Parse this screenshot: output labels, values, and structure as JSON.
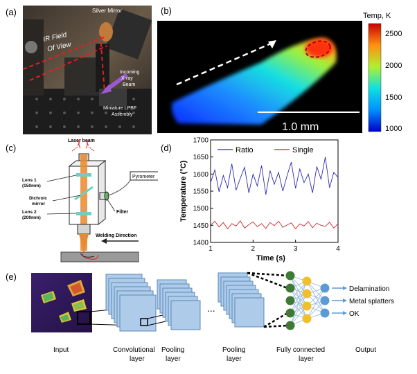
{
  "panels": {
    "a": {
      "label": "(a)",
      "annotations": {
        "silver_mirror": "Silver Mirror",
        "ir_field_1": "IR Field",
        "ir_field_2": "Of View",
        "incoming_1": "Incoming",
        "incoming_2": "X-ray",
        "incoming_3": "Beam",
        "lpbf_1": "Miniature LPBF",
        "lpbf_2": "Assembly"
      }
    },
    "b": {
      "label": "(b)",
      "colorbar_title": "Temp, K",
      "colorbar_ticks": [
        "2500",
        "2000",
        "1500",
        "1000"
      ],
      "scale_bar": "1.0 mm"
    },
    "c": {
      "label": "(c)",
      "laser_beam": "Laser beam",
      "pyrometer": "Pyrometer",
      "lens1_1": "Lens 1",
      "lens1_2": "(150mm)",
      "dichroic_1": "Dichroic",
      "dichroic_2": "mirror",
      "filter": "Filter",
      "lens2_1": "Lens 2",
      "lens2_2": "(200mm)",
      "welding_direction": "Welding Direction"
    },
    "d": {
      "label": "(d)"
    },
    "e": {
      "label": "(e)",
      "captions": {
        "input": "Input",
        "conv_1": "Convolutional",
        "conv_2": "layer",
        "pool1_1": "Pooling",
        "pool1_2": "layer",
        "pool2_1": "Pooling",
        "pool2_2": "layer",
        "fc_1": "Fully connected",
        "fc_2": "layer",
        "output": "Output"
      },
      "ellipsis": "...",
      "outputs": [
        "Delamination",
        "Metal splatters",
        "OK"
      ],
      "colors": {
        "layer": "#aecbea",
        "green": "#3e7a36",
        "yellow": "#f0c02a",
        "blue": "#5b9bd5"
      }
    }
  },
  "chart_data": {
    "type": "line",
    "xlabel": "Time (s)",
    "ylabel": "Temperature (°C)",
    "xlim": [
      1,
      4
    ],
    "ylim": [
      1400,
      1700
    ],
    "xticks": [
      "1",
      "2",
      "3",
      "4"
    ],
    "yticks": [
      "1400",
      "1450",
      "1500",
      "1550",
      "1600",
      "1650",
      "1700"
    ],
    "legend_position": "top",
    "series": [
      {
        "name": "Ratio",
        "color": "#2b2bb0",
        "x": [
          1.0,
          1.1,
          1.2,
          1.3,
          1.4,
          1.5,
          1.6,
          1.7,
          1.8,
          1.9,
          2.0,
          2.1,
          2.2,
          2.3,
          2.4,
          2.5,
          2.6,
          2.7,
          2.8,
          2.9,
          3.0,
          3.1,
          3.2,
          3.3,
          3.4,
          3.5,
          3.6,
          3.7,
          3.8,
          3.9,
          4.0
        ],
        "values": [
          1575,
          1612,
          1548,
          1596,
          1560,
          1630,
          1553,
          1588,
          1620,
          1545,
          1600,
          1565,
          1625,
          1540,
          1610,
          1570,
          1605,
          1550,
          1595,
          1635,
          1558,
          1615,
          1575,
          1600,
          1545,
          1622,
          1585,
          1650,
          1560,
          1605,
          1590
        ]
      },
      {
        "name": "Single",
        "color": "#c0282d",
        "x": [
          1.0,
          1.1,
          1.2,
          1.3,
          1.4,
          1.5,
          1.6,
          1.7,
          1.8,
          1.9,
          2.0,
          2.1,
          2.2,
          2.3,
          2.4,
          2.5,
          2.6,
          2.7,
          2.8,
          2.9,
          3.0,
          3.1,
          3.2,
          3.3,
          3.4,
          3.5,
          3.6,
          3.7,
          3.8,
          3.9,
          4.0
        ],
        "values": [
          1450,
          1462,
          1445,
          1458,
          1440,
          1455,
          1448,
          1463,
          1442,
          1452,
          1460,
          1446,
          1455,
          1441,
          1458,
          1449,
          1462,
          1444,
          1451,
          1457,
          1440,
          1454,
          1448,
          1461,
          1443,
          1456,
          1450,
          1447,
          1459,
          1442,
          1455
        ]
      }
    ]
  }
}
